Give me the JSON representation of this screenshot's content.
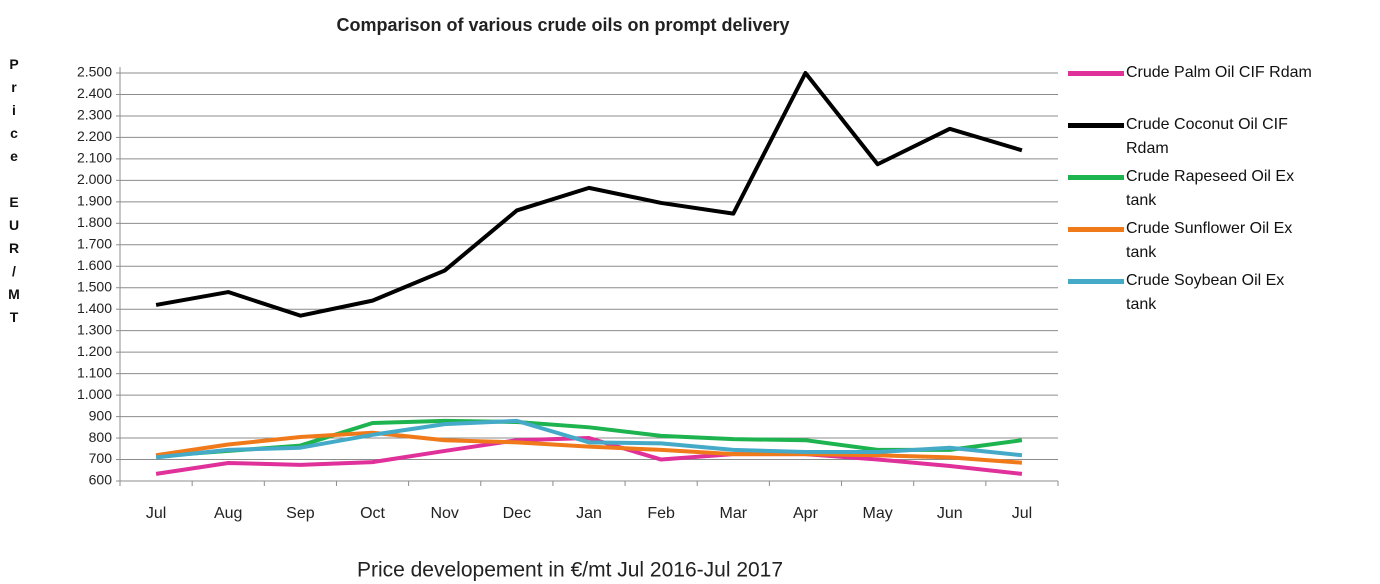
{
  "chart_data": {
    "type": "line",
    "title": "Comparison of various crude oils on prompt delivery",
    "x_label": "Price developement in €/mt Jul 2016-Jul 2017",
    "y_label": "Price EUR/MT",
    "categories": [
      "Jul",
      "Aug",
      "Sep",
      "Oct",
      "Nov",
      "Dec",
      "Jan",
      "Feb",
      "Mar",
      "Apr",
      "May",
      "Jun",
      "Jul"
    ],
    "series": [
      {
        "name": "Crude Palm Oil CIF Rdam",
        "color": "#e0309a",
        "values": [
          633,
          684,
          675,
          688,
          740,
          790,
          800,
          700,
          725,
          725,
          700,
          670,
          633
        ]
      },
      {
        "name": "Crude Coconut Oil CIF Rdam",
        "color": "#000000",
        "values": [
          1420,
          1480,
          1370,
          1440,
          1580,
          1860,
          1965,
          1895,
          1845,
          2500,
          2075,
          2240,
          2140
        ]
      },
      {
        "name": "Crude Rapeseed Oil Ex tank",
        "color": "#1db34f",
        "values": [
          715,
          740,
          765,
          870,
          880,
          875,
          850,
          810,
          795,
          790,
          745,
          745,
          790
        ]
      },
      {
        "name": "Crude Sunflower Oil Ex tank",
        "color": "#f07a1a",
        "values": [
          720,
          770,
          805,
          825,
          790,
          780,
          760,
          745,
          725,
          725,
          720,
          710,
          685
        ]
      },
      {
        "name": "Crude Soybean Oil Ex tank",
        "color": "#44aac8",
        "values": [
          710,
          745,
          755,
          815,
          865,
          880,
          780,
          775,
          745,
          735,
          735,
          755,
          720
        ]
      }
    ],
    "ylim": [
      600,
      2500
    ],
    "yticks": [
      600,
      700,
      800,
      900,
      {
        "value": 1000,
        "label": "1.000"
      },
      {
        "value": 1100,
        "label": "1.100"
      },
      {
        "value": 1200,
        "label": "1.200"
      },
      {
        "value": 1300,
        "label": "1.300"
      },
      {
        "value": 1400,
        "label": "1.400"
      },
      {
        "value": 1500,
        "label": "1.500"
      },
      {
        "value": 1600,
        "label": "1.600"
      },
      {
        "value": 1700,
        "label": "1.700"
      },
      {
        "value": 1800,
        "label": "1.800"
      },
      {
        "value": 1900,
        "label": "1.900"
      },
      {
        "value": 2000,
        "label": "2.000"
      },
      {
        "value": 2100,
        "label": "2.100"
      },
      {
        "value": 2200,
        "label": "2.200"
      },
      {
        "value": 2300,
        "label": "2.300"
      },
      {
        "value": 2400,
        "label": "2.400"
      },
      {
        "value": 2500,
        "label": "2.500"
      }
    ],
    "grid": true,
    "legend": "right"
  }
}
